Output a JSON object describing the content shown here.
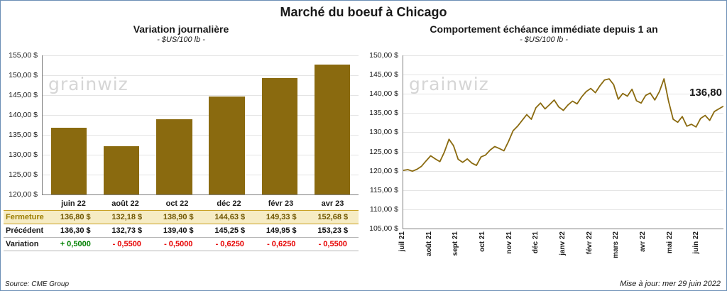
{
  "page": {
    "title": "Marché du boeuf à Chicago",
    "source": "Source: CME Group",
    "updated": "Mise à jour: mer 29 juin 2022",
    "watermark": "grainwiz"
  },
  "colors": {
    "bar": "#8a6a0f",
    "line": "#8a6a0f",
    "positive": "#008000",
    "negative": "#e60000",
    "fermeture_bg": "#f6ecc4",
    "fermeture_border": "#c9a227",
    "watermark": "#d6d6d6"
  },
  "chart_data": [
    {
      "type": "bar",
      "title": "Variation  journalière",
      "subtitle": "- $US/100 lb -",
      "categories": [
        "juin 22",
        "août 22",
        "oct 22",
        "déc 22",
        "févr 23",
        "avr 23"
      ],
      "values": [
        136.8,
        132.18,
        138.9,
        144.63,
        149.33,
        152.68
      ],
      "ylim": [
        120,
        155
      ],
      "ytick_labels": [
        "155,00 $",
        "150,00 $",
        "145,00 $",
        "140,00 $",
        "135,00 $",
        "130,00 $",
        "125,00 $",
        "120,00 $"
      ],
      "grid": true,
      "legend": "none"
    },
    {
      "type": "line",
      "title": "Comportement  échéance  immédiate  depuis 1 an",
      "subtitle": "- $US/100 lb -",
      "x_labels": [
        "juil 21",
        "août 21",
        "sept 21",
        "oct 21",
        "nov 21",
        "déc 21",
        "janv 22",
        "févr 22",
        "mars 22",
        "avr 22",
        "mai 22",
        "juin 22"
      ],
      "values": [
        120.1,
        120.3,
        119.9,
        120.4,
        121.2,
        122.6,
        123.9,
        123.1,
        122.4,
        124.9,
        128.2,
        126.5,
        123.0,
        122.2,
        123.1,
        122.0,
        121.4,
        123.6,
        124.1,
        125.4,
        126.3,
        125.8,
        125.2,
        127.6,
        130.4,
        131.6,
        133.1,
        134.6,
        133.4,
        136.4,
        137.6,
        136.1,
        137.2,
        138.4,
        136.6,
        135.7,
        137.1,
        138.1,
        137.4,
        139.2,
        140.6,
        141.4,
        140.3,
        142.1,
        143.6,
        143.9,
        142.4,
        138.6,
        140.1,
        139.4,
        141.2,
        138.2,
        137.6,
        139.6,
        140.2,
        138.4,
        140.6,
        143.9,
        138.1,
        133.4,
        132.6,
        134.1,
        131.6,
        132.1,
        131.4,
        133.6,
        134.4,
        133.1,
        135.4,
        136.1,
        136.8
      ],
      "ylim": [
        105,
        150
      ],
      "ytick_labels": [
        "150,00 $",
        "145,00 $",
        "140,00 $",
        "135,00 $",
        "130,00 $",
        "125,00 $",
        "120,00 $",
        "115,00 $",
        "110,00 $",
        "105,00 $"
      ],
      "annotation_label": "136,80",
      "annotation_value": 136.8,
      "grid": true,
      "legend": "none"
    }
  ],
  "table": {
    "rows": [
      {
        "label": "Fermeture",
        "values": [
          "136,80  $",
          "132,18  $",
          "138,90  $",
          "144,63  $",
          "149,33  $",
          "152,68  $"
        ]
      },
      {
        "label": "Précédent",
        "values": [
          "136,30  $",
          "132,73  $",
          "139,40  $",
          "145,25  $",
          "149,95  $",
          "153,23  $"
        ]
      },
      {
        "label": "Variation",
        "values": [
          "+ 0,5000",
          "- 0,5500",
          "- 0,5000",
          "- 0,6250",
          "- 0,6250",
          "- 0,5500"
        ]
      }
    ]
  }
}
